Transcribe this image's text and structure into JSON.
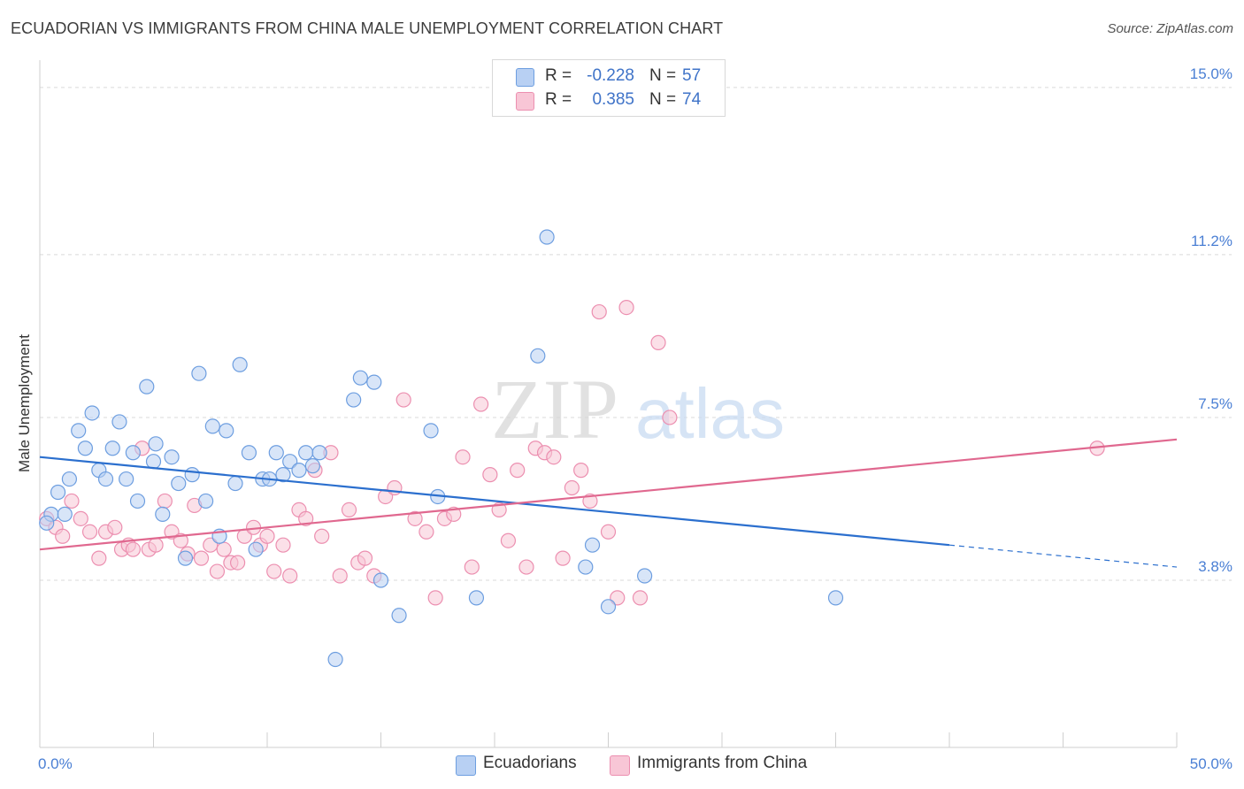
{
  "header": {
    "title": "ECUADORIAN VS IMMIGRANTS FROM CHINA MALE UNEMPLOYMENT CORRELATION CHART",
    "source": "Source: ZipAtlas.com"
  },
  "watermark": {
    "zip": "ZIP",
    "atlas": "atlas"
  },
  "legend": {
    "rows": [
      {
        "r_label": "R =",
        "r_value": "-0.228",
        "n_label": "N =",
        "n_value": "57"
      },
      {
        "r_label": "R =",
        "r_value": "0.385",
        "n_label": "N =",
        "n_value": "74"
      }
    ]
  },
  "colors": {
    "blue_fill": "#b8d0f3",
    "blue_stroke": "#6d9ee0",
    "blue_line": "#2b6fce",
    "pink_fill": "#f8c6d6",
    "pink_stroke": "#ec8fb0",
    "pink_line": "#e0688f",
    "tick_text": "#4a7fd4",
    "grid": "#d9d9d9"
  },
  "chart_data": {
    "type": "scatter",
    "title": "ECUADORIAN VS IMMIGRANTS FROM CHINA MALE UNEMPLOYMENT CORRELATION CHART",
    "xlabel": "",
    "ylabel": "Male Unemployment",
    "xlim": [
      0,
      50
    ],
    "ylim": [
      0,
      15.4
    ],
    "y_ticks": [
      {
        "value": 3.8,
        "label": "3.8%"
      },
      {
        "value": 7.5,
        "label": "7.5%"
      },
      {
        "value": 11.2,
        "label": "11.2%"
      },
      {
        "value": 15.0,
        "label": "15.0%"
      }
    ],
    "x_tick_labels": [
      {
        "value": 0,
        "label": "0.0%"
      },
      {
        "value": 50,
        "label": "50.0%"
      }
    ],
    "x_minor_ticks": [
      0,
      5,
      10,
      15,
      20,
      25,
      30,
      35,
      40,
      45,
      50
    ],
    "series": [
      {
        "name": "Ecuadorians",
        "trend": {
          "x0": 0,
          "y0": 6.6,
          "x1": 40,
          "y1": 4.6,
          "dash_to_x": 50,
          "dash_to_y": 4.1
        },
        "points": [
          [
            0.5,
            5.3
          ],
          [
            0.8,
            5.8
          ],
          [
            1.1,
            5.3
          ],
          [
            1.3,
            6.1
          ],
          [
            1.7,
            7.2
          ],
          [
            2.0,
            6.8
          ],
          [
            2.3,
            7.6
          ],
          [
            2.6,
            6.3
          ],
          [
            2.9,
            6.1
          ],
          [
            3.2,
            6.8
          ],
          [
            3.5,
            7.4
          ],
          [
            3.8,
            6.1
          ],
          [
            4.1,
            6.7
          ],
          [
            4.3,
            5.6
          ],
          [
            4.7,
            8.2
          ],
          [
            5.0,
            6.5
          ],
          [
            5.1,
            6.9
          ],
          [
            5.4,
            5.3
          ],
          [
            5.8,
            6.6
          ],
          [
            6.1,
            6.0
          ],
          [
            6.4,
            4.3
          ],
          [
            6.7,
            6.2
          ],
          [
            7.0,
            8.5
          ],
          [
            7.3,
            5.6
          ],
          [
            7.6,
            7.3
          ],
          [
            7.9,
            4.8
          ],
          [
            8.2,
            7.2
          ],
          [
            8.6,
            6.0
          ],
          [
            8.8,
            8.7
          ],
          [
            9.2,
            6.7
          ],
          [
            9.5,
            4.5
          ],
          [
            9.8,
            6.1
          ],
          [
            10.1,
            6.1
          ],
          [
            10.4,
            6.7
          ],
          [
            10.7,
            6.2
          ],
          [
            11.0,
            6.5
          ],
          [
            11.4,
            6.3
          ],
          [
            11.7,
            6.7
          ],
          [
            12.0,
            6.4
          ],
          [
            12.3,
            6.7
          ],
          [
            13.0,
            2.0
          ],
          [
            13.8,
            7.9
          ],
          [
            14.1,
            8.4
          ],
          [
            14.7,
            8.3
          ],
          [
            15.0,
            3.8
          ],
          [
            15.8,
            3.0
          ],
          [
            17.2,
            7.2
          ],
          [
            17.5,
            5.7
          ],
          [
            19.2,
            3.4
          ],
          [
            21.9,
            8.9
          ],
          [
            22.3,
            11.6
          ],
          [
            24.0,
            4.1
          ],
          [
            24.3,
            4.6
          ],
          [
            25.0,
            3.2
          ],
          [
            26.6,
            3.9
          ],
          [
            35.0,
            3.4
          ],
          [
            0.3,
            5.1
          ]
        ]
      },
      {
        "name": "Immigrants from China",
        "trend": {
          "x0": 0,
          "y0": 4.5,
          "x1": 50,
          "y1": 7.0
        },
        "points": [
          [
            0.3,
            5.2
          ],
          [
            0.7,
            5.0
          ],
          [
            1.0,
            4.8
          ],
          [
            1.4,
            5.6
          ],
          [
            1.8,
            5.2
          ],
          [
            2.2,
            4.9
          ],
          [
            2.6,
            4.3
          ],
          [
            2.9,
            4.9
          ],
          [
            3.3,
            5.0
          ],
          [
            3.6,
            4.5
          ],
          [
            3.9,
            4.6
          ],
          [
            4.1,
            4.5
          ],
          [
            4.5,
            6.8
          ],
          [
            4.8,
            4.5
          ],
          [
            5.1,
            4.6
          ],
          [
            5.5,
            5.6
          ],
          [
            5.8,
            4.9
          ],
          [
            6.2,
            4.7
          ],
          [
            6.5,
            4.4
          ],
          [
            6.8,
            5.5
          ],
          [
            7.1,
            4.3
          ],
          [
            7.5,
            4.6
          ],
          [
            7.8,
            4.0
          ],
          [
            8.1,
            4.5
          ],
          [
            8.4,
            4.2
          ],
          [
            8.7,
            4.2
          ],
          [
            9.0,
            4.8
          ],
          [
            9.4,
            5.0
          ],
          [
            9.7,
            4.6
          ],
          [
            10.0,
            4.8
          ],
          [
            10.3,
            4.0
          ],
          [
            10.7,
            4.6
          ],
          [
            11.0,
            3.9
          ],
          [
            11.4,
            5.4
          ],
          [
            11.7,
            5.2
          ],
          [
            12.1,
            6.3
          ],
          [
            12.4,
            4.8
          ],
          [
            12.8,
            6.7
          ],
          [
            13.2,
            3.9
          ],
          [
            13.6,
            5.4
          ],
          [
            14.0,
            4.2
          ],
          [
            14.3,
            4.3
          ],
          [
            14.7,
            3.9
          ],
          [
            15.2,
            5.7
          ],
          [
            15.6,
            5.9
          ],
          [
            16.0,
            7.9
          ],
          [
            16.5,
            5.2
          ],
          [
            17.0,
            4.9
          ],
          [
            17.4,
            3.4
          ],
          [
            17.8,
            5.2
          ],
          [
            18.2,
            5.3
          ],
          [
            18.6,
            6.6
          ],
          [
            19.0,
            4.1
          ],
          [
            19.4,
            7.8
          ],
          [
            19.8,
            6.2
          ],
          [
            20.2,
            5.4
          ],
          [
            20.6,
            4.7
          ],
          [
            21.0,
            6.3
          ],
          [
            21.4,
            4.1
          ],
          [
            21.8,
            6.8
          ],
          [
            22.2,
            6.7
          ],
          [
            22.6,
            6.6
          ],
          [
            23.0,
            4.3
          ],
          [
            23.4,
            5.9
          ],
          [
            23.8,
            6.3
          ],
          [
            24.2,
            5.6
          ],
          [
            24.6,
            9.9
          ],
          [
            25.0,
            4.9
          ],
          [
            25.4,
            3.4
          ],
          [
            25.8,
            10.0
          ],
          [
            27.2,
            9.2
          ],
          [
            27.7,
            7.5
          ],
          [
            26.4,
            3.4
          ],
          [
            46.5,
            6.8
          ]
        ]
      }
    ]
  }
}
